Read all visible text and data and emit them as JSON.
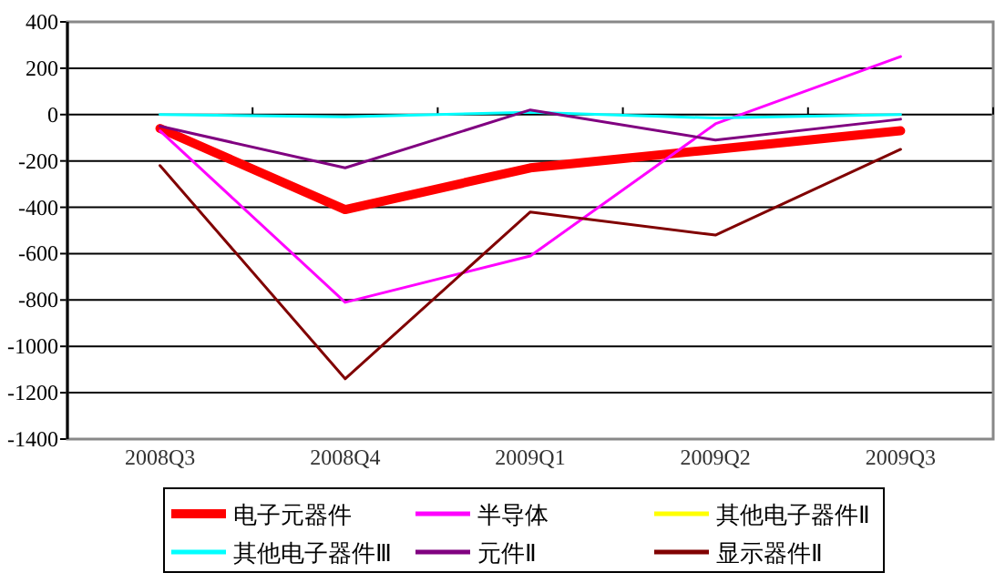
{
  "chart_data": {
    "type": "line",
    "categories": [
      "2008Q3",
      "2008Q4",
      "2009Q1",
      "2009Q2",
      "2009Q3"
    ],
    "series": [
      {
        "name": "电子元器件",
        "color": "#ff0000",
        "values": [
          -60,
          -410,
          -230,
          -150,
          -70
        ]
      },
      {
        "name": "半导体",
        "color": "#ff00ff",
        "values": [
          -70,
          -810,
          -610,
          -40,
          250
        ]
      },
      {
        "name": "其他电子器件Ⅱ",
        "color": "#ffff00",
        "values": [
          null,
          null,
          null,
          null,
          null
        ]
      },
      {
        "name": "其他电子器件Ⅲ",
        "color": "#00ffff",
        "values": [
          0,
          -10,
          10,
          -15,
          0
        ]
      },
      {
        "name": "元件Ⅱ",
        "color": "#800080",
        "values": [
          -50,
          -230,
          20,
          -110,
          -20
        ]
      },
      {
        "name": "显示器件Ⅱ",
        "color": "#800000",
        "values": [
          -220,
          -1140,
          -420,
          -520,
          -150
        ]
      }
    ],
    "ylim": [
      -1400,
      400
    ],
    "yticks": [
      -1400,
      -1200,
      -1000,
      -800,
      -600,
      -400,
      -200,
      0,
      200,
      400
    ],
    "grid": "y",
    "legend": "bottom",
    "marker": "none",
    "line_style": "solid"
  }
}
